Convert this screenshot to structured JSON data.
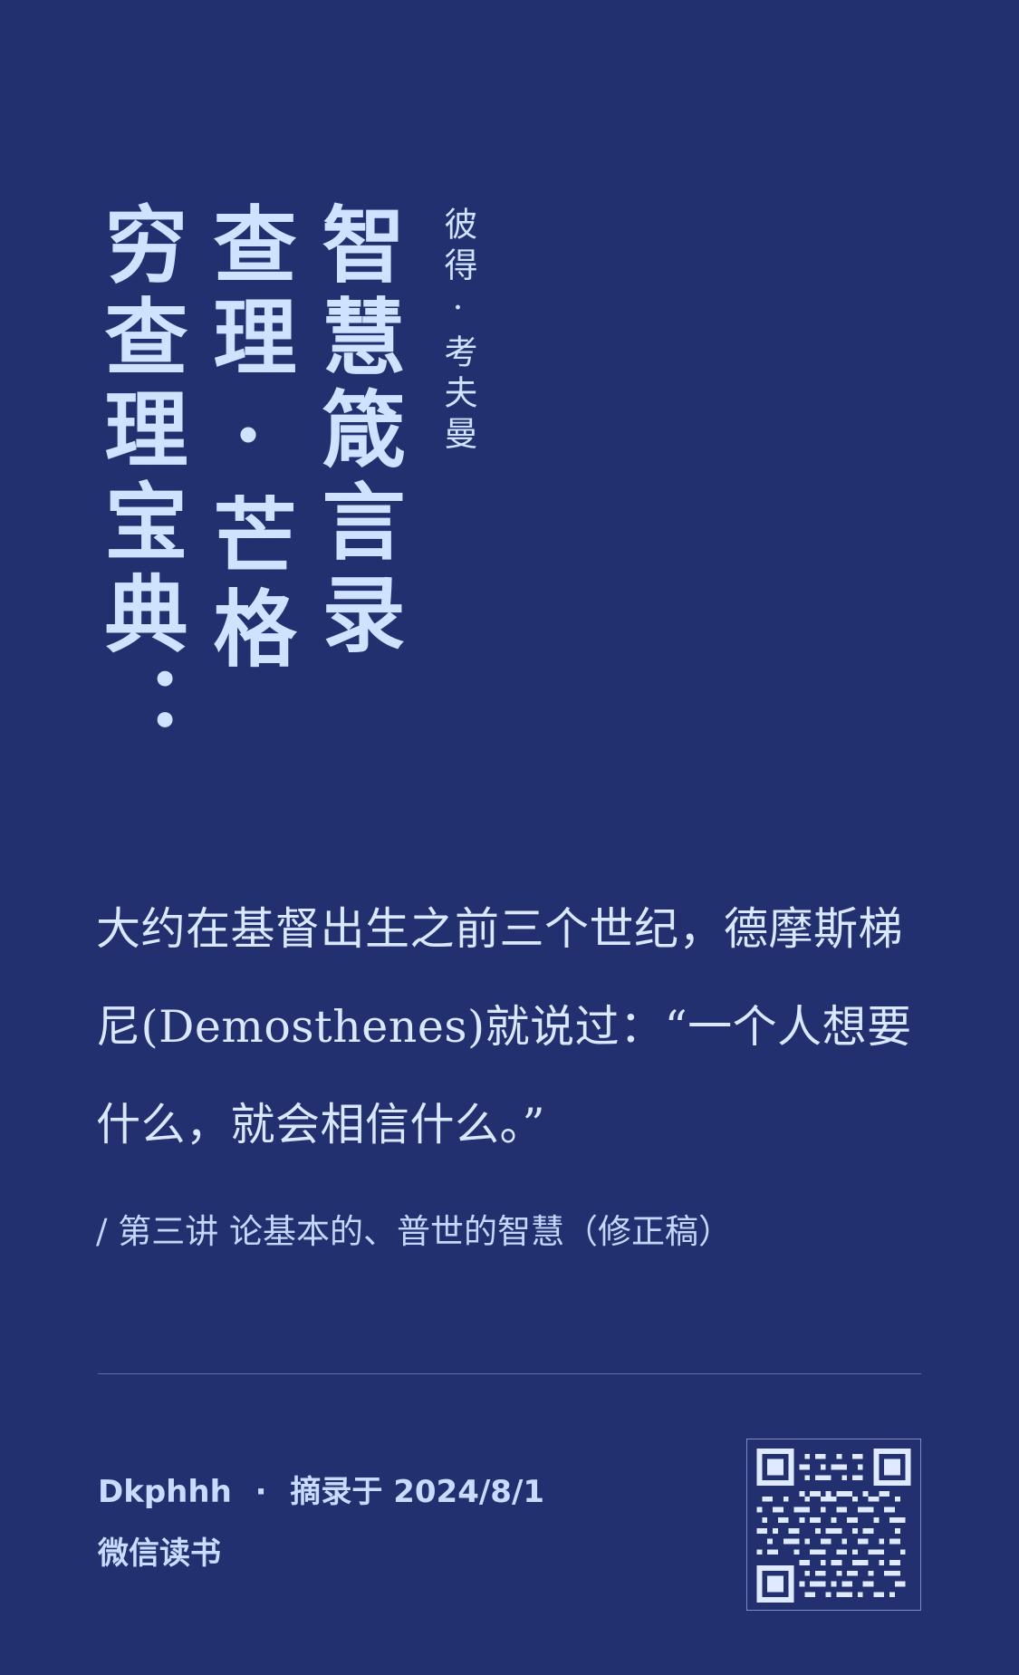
{
  "title": {
    "lines": [
      "智慧箴言录",
      "查理·芒格",
      "穷查理宝典："
    ]
  },
  "author": "彼得·考夫曼",
  "quote": "大约在基督出生之前三个世纪，德摩斯梯尼(Demosthenes)就说过：“一个人想要什么，就会相信什么。”",
  "source": "/ 第三讲 论基本的、普世的智慧（修正稿）",
  "footer": {
    "user": "Dkphhh",
    "separator": "·",
    "excerpt_label": "摘录于 2024/8/1",
    "app": "微信读书"
  },
  "colors": {
    "background": "#22306f",
    "text": "#d7e6ff",
    "divider": "#8fa6df"
  },
  "icons": {
    "qr": "qr-code-icon"
  }
}
